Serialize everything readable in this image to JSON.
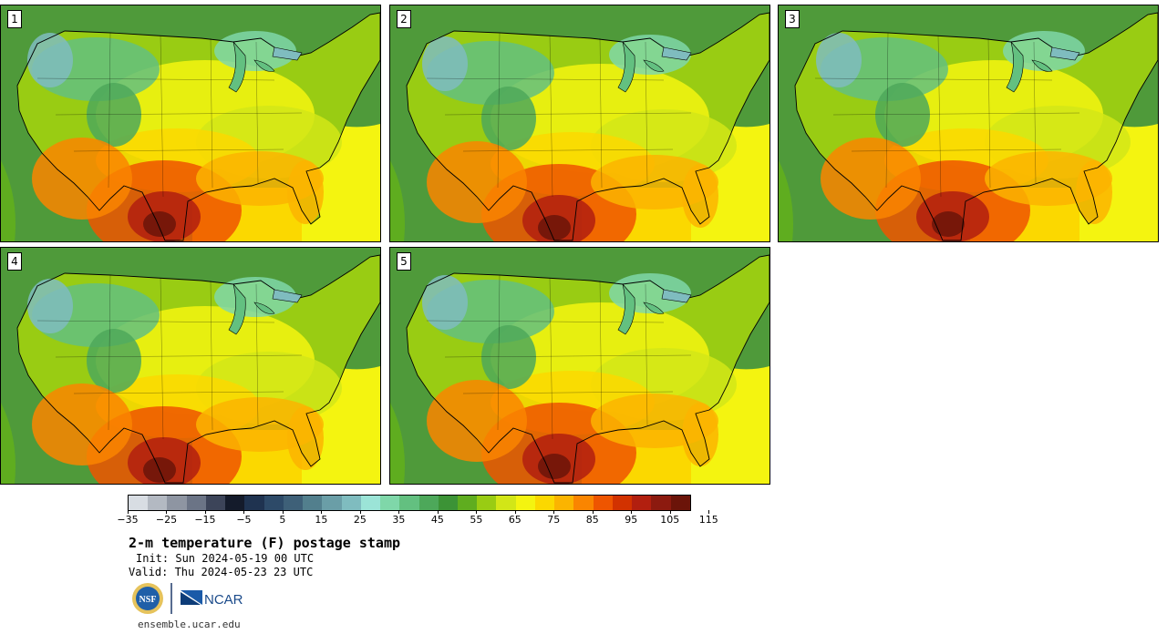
{
  "panels": [
    {
      "label": "1"
    },
    {
      "label": "2"
    },
    {
      "label": "3"
    },
    {
      "label": "4"
    },
    {
      "label": "5"
    }
  ],
  "colorbar": {
    "colors": [
      "#d8dde3",
      "#b3b9c2",
      "#8e95a2",
      "#6b7486",
      "#3c4459",
      "#141b2b",
      "#1f3350",
      "#2d4a68",
      "#3e6078",
      "#527f8d",
      "#6a9ea7",
      "#7fbcbf",
      "#9be4d7",
      "#7fd7a9",
      "#63c080",
      "#4da85a",
      "#3c9336",
      "#5fad1f",
      "#99cc13",
      "#d2e617",
      "#f4f410",
      "#fbd800",
      "#fbb400",
      "#fa8500",
      "#ee5500",
      "#d23200",
      "#b21f0f",
      "#8c1a0f",
      "#6b1409"
    ],
    "tick_labels": [
      "−35",
      "−25",
      "−15",
      "−5",
      "5",
      "15",
      "25",
      "35",
      "45",
      "55",
      "65",
      "75",
      "85",
      "95",
      "105",
      "115"
    ]
  },
  "title": "2-m temperature (F) postage stamp",
  "init": "Init: Sun 2024-05-19 00 UTC",
  "valid": "Valid: Thu 2024-05-23 23 UTC",
  "logos": {
    "nsf_text": "NSF",
    "ncar_text": "NCAR"
  },
  "footer_url": "ensemble.ucar.edu"
}
